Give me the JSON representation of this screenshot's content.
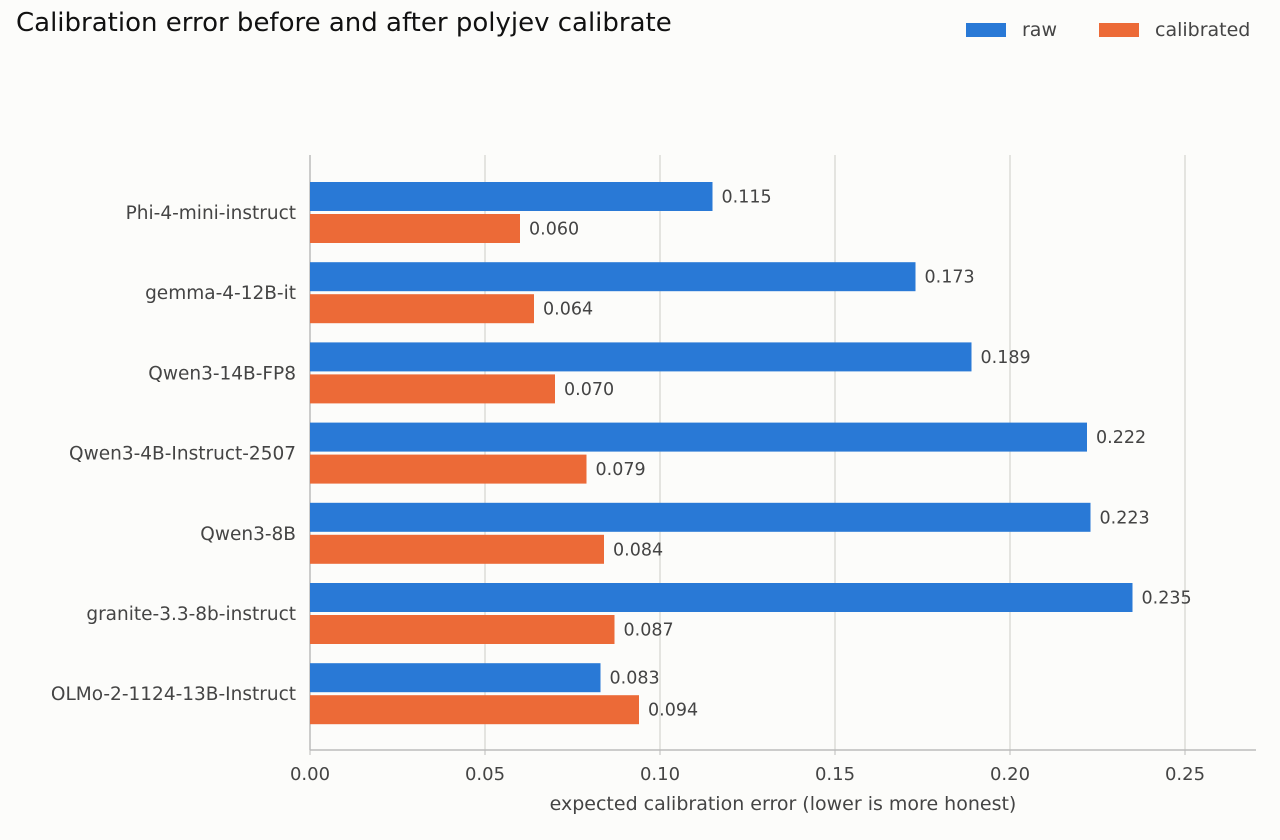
{
  "chart_data": {
    "type": "bar",
    "orientation": "horizontal",
    "title": "Calibration error before and after polyjev calibrate",
    "xlabel": "expected calibration error (lower is more honest)",
    "ylabel": "",
    "xlim": [
      0,
      0.27
    ],
    "xticks": [
      0.0,
      0.05,
      0.1,
      0.15,
      0.2,
      0.25
    ],
    "xtick_labels": [
      "0.00",
      "0.05",
      "0.10",
      "0.15",
      "0.20",
      "0.25"
    ],
    "grid": "vertical",
    "legend_position": "top-right",
    "categories": [
      "Phi-4-mini-instruct",
      "gemma-4-12B-it",
      "Qwen3-14B-FP8",
      "Qwen3-4B-Instruct-2507",
      "Qwen3-8B",
      "granite-3.3-8b-instruct",
      "OLMo-2-1124-13B-Instruct"
    ],
    "series": [
      {
        "name": "raw",
        "color": "#2979d6",
        "values": [
          0.115,
          0.173,
          0.189,
          0.222,
          0.223,
          0.235,
          0.083
        ],
        "labels": [
          "0.115",
          "0.173",
          "0.189",
          "0.222",
          "0.223",
          "0.235",
          "0.083"
        ]
      },
      {
        "name": "calibrated",
        "color": "#ec6a37",
        "values": [
          0.06,
          0.064,
          0.07,
          0.079,
          0.084,
          0.087,
          0.094
        ],
        "labels": [
          "0.060",
          "0.064",
          "0.070",
          "0.079",
          "0.084",
          "0.087",
          "0.094"
        ]
      }
    ]
  }
}
